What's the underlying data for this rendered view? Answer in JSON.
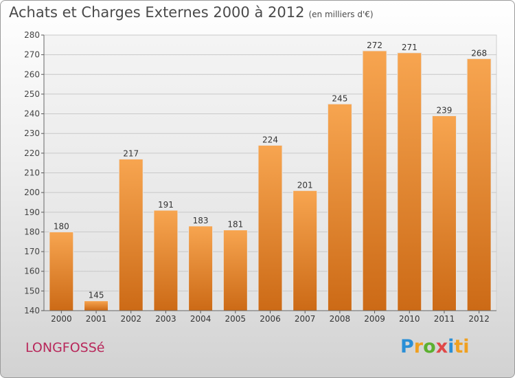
{
  "header": {
    "title": "Achats et Charges Externes 2000 à 2012",
    "unit": "(en milliers d'€)"
  },
  "footer": {
    "commune": "LONGFOSSé",
    "brand_letters": [
      "P",
      "r",
      "o",
      "x",
      "i",
      "ti"
    ]
  },
  "colors": {
    "bar_light": "#f7a550",
    "bar_dark": "#cc6a16",
    "grid": "#c8c8c8",
    "commune_text": "#b8285b"
  },
  "chart_data": {
    "type": "bar",
    "title": "Achats et Charges Externes 2000 à 2012",
    "subtitle": "(en milliers d'€)",
    "xlabel": "",
    "ylabel": "",
    "categories": [
      "2000",
      "2001",
      "2002",
      "2003",
      "2004",
      "2005",
      "2006",
      "2007",
      "2008",
      "2009",
      "2010",
      "2011",
      "2012"
    ],
    "values": [
      180,
      145,
      217,
      191,
      183,
      181,
      224,
      201,
      245,
      272,
      271,
      239,
      268
    ],
    "ylim": [
      140,
      280
    ],
    "yticks": [
      140,
      150,
      160,
      170,
      180,
      190,
      200,
      210,
      220,
      230,
      240,
      250,
      260,
      270,
      280
    ],
    "grid": true,
    "legend": "none",
    "data_labels": true
  }
}
